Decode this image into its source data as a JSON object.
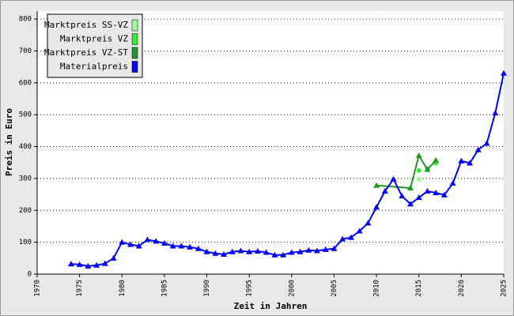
{
  "chart_data": {
    "type": "line",
    "x_label": "Zeit in Jahren",
    "y_label": "Preis in Euro",
    "xlim": [
      1970,
      2025
    ],
    "xticks": [
      1970,
      1975,
      1980,
      1985,
      1990,
      1995,
      2000,
      2005,
      2010,
      2015,
      2020,
      2025
    ],
    "ylim": [
      0,
      825
    ],
    "yticks": [
      0,
      100,
      200,
      300,
      400,
      500,
      600,
      700,
      800
    ],
    "grid": true,
    "legend": "upper left",
    "series": [
      {
        "name": "Marktpreis SS-VZ",
        "color": "#99ff99",
        "marker": "circle",
        "line": false,
        "x": [
          2015,
          2016,
          2017
        ],
        "values": [
          298,
          332,
          350
        ]
      },
      {
        "name": "Marktpreis VZ",
        "color": "#33ee33",
        "marker": "circle",
        "line": false,
        "x": [
          2015,
          2016,
          2017
        ],
        "values": [
          325,
          330,
          348
        ]
      },
      {
        "name": "Marktpreis VZ-ST",
        "color": "#229922",
        "marker": "triangle",
        "line": true,
        "x": [
          2010,
          2014,
          2015,
          2016,
          2017
        ],
        "values": [
          278,
          270,
          372,
          328,
          357
        ]
      },
      {
        "name": "Materialpreis",
        "color": "#0000ff",
        "marker": "triangle",
        "line": true,
        "x": [
          1974,
          1975,
          1976,
          1977,
          1978,
          1979,
          1980,
          1981,
          1982,
          1983,
          1984,
          1985,
          1986,
          1987,
          1988,
          1989,
          1990,
          1991,
          1992,
          1993,
          1994,
          1995,
          1996,
          1997,
          1998,
          1999,
          2000,
          2001,
          2002,
          2003,
          2004,
          2005,
          2006,
          2007,
          2008,
          2009,
          2010,
          2011,
          2012,
          2013,
          2014,
          2015,
          2016,
          2017,
          2018,
          2019,
          2020,
          2021,
          2022,
          2023,
          2024,
          2025
        ],
        "values": [
          32,
          30,
          25,
          28,
          33,
          50,
          100,
          93,
          88,
          108,
          103,
          97,
          88,
          88,
          85,
          80,
          70,
          65,
          62,
          70,
          73,
          70,
          72,
          68,
          60,
          60,
          68,
          70,
          75,
          73,
          77,
          80,
          110,
          115,
          135,
          160,
          210,
          260,
          298,
          245,
          220,
          240,
          260,
          255,
          248,
          285,
          355,
          348,
          390,
          410,
          505,
          630
        ]
      }
    ]
  }
}
